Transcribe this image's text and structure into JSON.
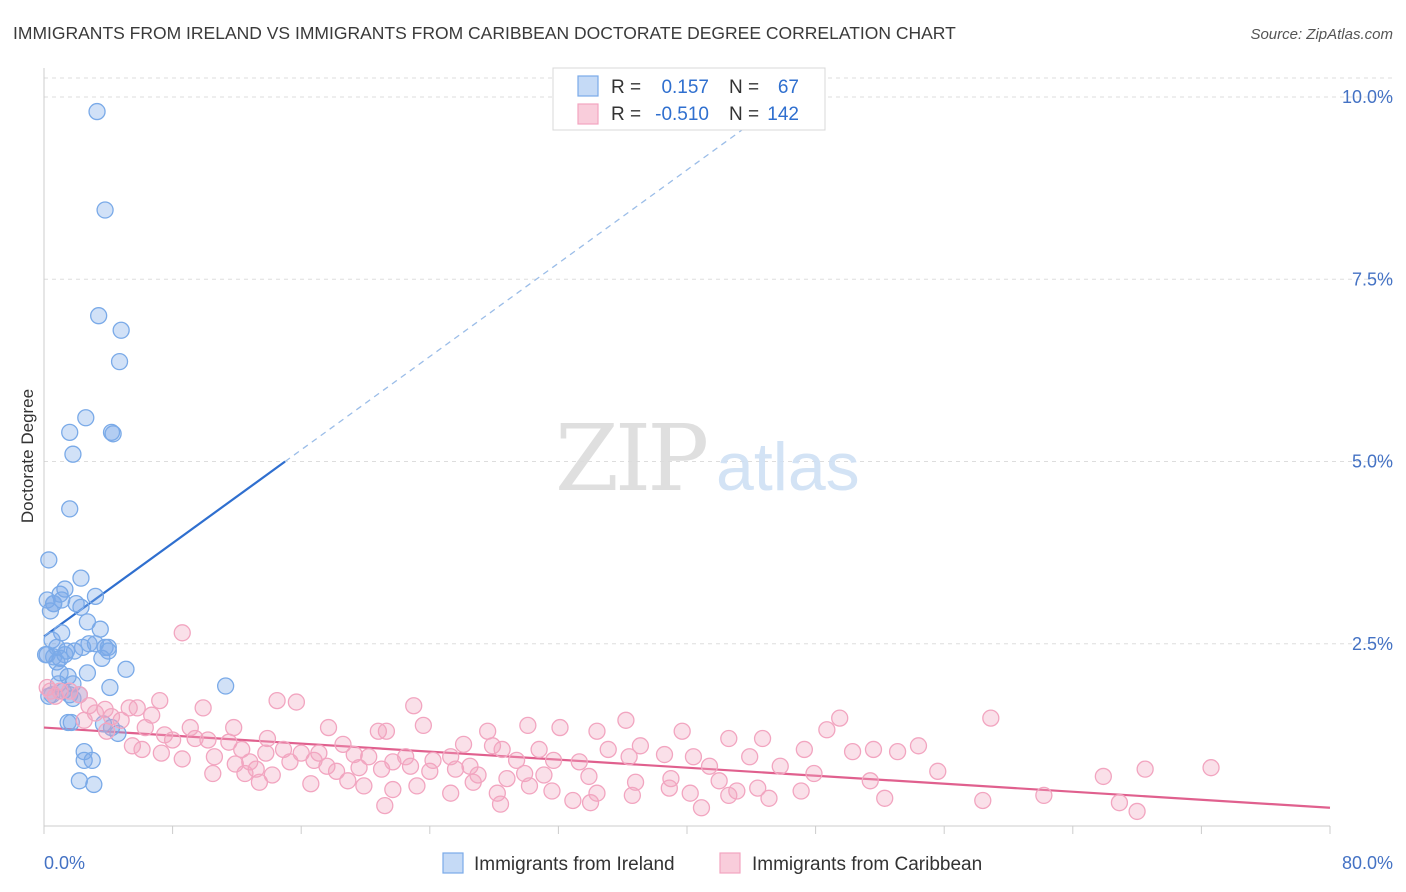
{
  "chart_data": {
    "type": "scatter",
    "title": "IMMIGRANTS FROM IRELAND VS IMMIGRANTS FROM CARIBBEAN DOCTORATE DEGREE CORRELATION CHART",
    "source": "Source: ZipAtlas.com",
    "ylabel": "Doctorate Degree",
    "xlabel": "",
    "xlim": [
      0,
      80
    ],
    "ylim": [
      0,
      10.5
    ],
    "x_tick_labels": [
      "0.0%",
      "80.0%"
    ],
    "y_ticks": [
      {
        "value": 2.5,
        "label": "2.5%"
      },
      {
        "value": 5.0,
        "label": "5.0%"
      },
      {
        "value": 7.5,
        "label": "7.5%"
      },
      {
        "value": 10.0,
        "label": "10.0%"
      }
    ],
    "grid": true,
    "watermark": "ZIPatlas",
    "stats_legend": [
      {
        "r_label": "R =",
        "r_value": "0.157",
        "n_label": "N =",
        "n_value": "67"
      },
      {
        "r_label": "R =",
        "r_value": "-0.510",
        "n_label": "N =",
        "n_value": "142"
      }
    ],
    "series": [
      {
        "name": "Immigrants from Ireland",
        "color": "#7aaae8",
        "line_color": "#2f6fcf",
        "trend_solid": {
          "x": [
            0,
            15
          ],
          "y": [
            2.6,
            5.0
          ]
        },
        "trend_dashed": {
          "x": [
            15,
            45
          ],
          "y": [
            5.0,
            9.8
          ]
        },
        "points": [
          [
            3.3,
            9.8
          ],
          [
            3.8,
            8.45
          ],
          [
            3.4,
            7.0
          ],
          [
            4.8,
            6.8
          ],
          [
            4.7,
            6.37
          ],
          [
            2.6,
            5.6
          ],
          [
            4.2,
            5.4
          ],
          [
            4.3,
            5.38
          ],
          [
            1.6,
            5.4
          ],
          [
            1.8,
            5.1
          ],
          [
            1.6,
            4.35
          ],
          [
            0.3,
            3.65
          ],
          [
            2.3,
            3.4
          ],
          [
            1.3,
            3.25
          ],
          [
            3.2,
            3.15
          ],
          [
            0.6,
            3.05
          ],
          [
            1.0,
            3.18
          ],
          [
            2.0,
            3.05
          ],
          [
            2.3,
            3.0
          ],
          [
            1.1,
            3.1
          ],
          [
            0.2,
            3.1
          ],
          [
            0.4,
            2.95
          ],
          [
            0.6,
            3.05
          ],
          [
            2.7,
            2.8
          ],
          [
            3.5,
            2.7
          ],
          [
            1.1,
            2.65
          ],
          [
            0.5,
            2.55
          ],
          [
            0.8,
            2.45
          ],
          [
            3.8,
            2.45
          ],
          [
            4.0,
            2.45
          ],
          [
            2.8,
            2.5
          ],
          [
            3.2,
            2.5
          ],
          [
            2.4,
            2.45
          ],
          [
            1.9,
            2.4
          ],
          [
            1.4,
            2.4
          ],
          [
            0.2,
            2.35
          ],
          [
            0.1,
            2.35
          ],
          [
            1.3,
            2.35
          ],
          [
            0.6,
            2.32
          ],
          [
            1.0,
            2.3
          ],
          [
            3.6,
            2.3
          ],
          [
            4.0,
            2.4
          ],
          [
            0.8,
            2.25
          ],
          [
            5.1,
            2.15
          ],
          [
            2.7,
            2.1
          ],
          [
            1.5,
            2.05
          ],
          [
            1.0,
            2.1
          ],
          [
            1.8,
            1.95
          ],
          [
            4.1,
            1.9
          ],
          [
            11.3,
            1.92
          ],
          [
            1.2,
            1.85
          ],
          [
            1.6,
            1.8
          ],
          [
            2.2,
            1.8
          ],
          [
            0.5,
            1.8
          ],
          [
            0.3,
            1.78
          ],
          [
            1.8,
            1.75
          ],
          [
            1.5,
            1.42
          ],
          [
            1.7,
            1.42
          ],
          [
            3.7,
            1.4
          ],
          [
            4.6,
            1.27
          ],
          [
            2.5,
            1.02
          ],
          [
            2.5,
            0.9
          ],
          [
            3.0,
            0.9
          ],
          [
            2.2,
            0.62
          ],
          [
            3.1,
            0.57
          ],
          [
            0.9,
            1.95
          ],
          [
            4.2,
            1.35
          ]
        ]
      },
      {
        "name": "Immigrants from Caribbean",
        "color": "#f2a5c0",
        "line_color": "#e0608e",
        "trend_solid": {
          "x": [
            0,
            80
          ],
          "y": [
            1.35,
            0.25
          ]
        },
        "points": [
          [
            8.6,
            2.65
          ],
          [
            0.2,
            1.9
          ],
          [
            0.4,
            1.85
          ],
          [
            1.0,
            1.85
          ],
          [
            1.6,
            1.85
          ],
          [
            2.2,
            1.8
          ],
          [
            0.7,
            1.78
          ],
          [
            2.8,
            1.65
          ],
          [
            3.8,
            1.6
          ],
          [
            5.3,
            1.62
          ],
          [
            5.8,
            1.62
          ],
          [
            7.2,
            1.72
          ],
          [
            9.9,
            1.62
          ],
          [
            14.5,
            1.72
          ],
          [
            15.7,
            1.7
          ],
          [
            23.0,
            1.65
          ],
          [
            3.2,
            1.55
          ],
          [
            4.2,
            1.5
          ],
          [
            6.7,
            1.52
          ],
          [
            2.5,
            1.45
          ],
          [
            4.8,
            1.45
          ],
          [
            6.3,
            1.35
          ],
          [
            9.1,
            1.35
          ],
          [
            11.8,
            1.35
          ],
          [
            13.9,
            1.2
          ],
          [
            17.7,
            1.35
          ],
          [
            20.8,
            1.3
          ],
          [
            21.3,
            1.3
          ],
          [
            23.6,
            1.38
          ],
          [
            27.6,
            1.3
          ],
          [
            30.1,
            1.38
          ],
          [
            32.1,
            1.35
          ],
          [
            34.4,
            1.3
          ],
          [
            36.2,
            1.45
          ],
          [
            39.7,
            1.3
          ],
          [
            42.6,
            1.2
          ],
          [
            44.7,
            1.2
          ],
          [
            48.7,
            1.32
          ],
          [
            49.5,
            1.48
          ],
          [
            51.6,
            1.05
          ],
          [
            54.4,
            1.1
          ],
          [
            58.9,
            1.48
          ],
          [
            3.9,
            1.3
          ],
          [
            5.5,
            1.1
          ],
          [
            6.1,
            1.05
          ],
          [
            7.5,
            1.25
          ],
          [
            8.0,
            1.18
          ],
          [
            9.4,
            1.2
          ],
          [
            10.2,
            1.18
          ],
          [
            11.5,
            1.15
          ],
          [
            12.3,
            1.05
          ],
          [
            13.8,
            1.0
          ],
          [
            14.9,
            1.05
          ],
          [
            16.0,
            1.0
          ],
          [
            17.1,
            1.0
          ],
          [
            18.6,
            1.12
          ],
          [
            19.3,
            0.98
          ],
          [
            20.2,
            0.95
          ],
          [
            21.7,
            0.88
          ],
          [
            22.5,
            0.95
          ],
          [
            24.2,
            0.9
          ],
          [
            25.3,
            0.95
          ],
          [
            26.1,
            1.12
          ],
          [
            27.9,
            1.1
          ],
          [
            28.5,
            1.05
          ],
          [
            29.4,
            0.9
          ],
          [
            30.8,
            1.05
          ],
          [
            31.7,
            0.9
          ],
          [
            33.3,
            0.88
          ],
          [
            35.1,
            1.05
          ],
          [
            36.4,
            0.95
          ],
          [
            37.1,
            1.1
          ],
          [
            38.6,
            0.98
          ],
          [
            40.4,
            0.95
          ],
          [
            41.4,
            0.82
          ],
          [
            43.9,
            0.95
          ],
          [
            45.8,
            0.82
          ],
          [
            47.3,
            1.05
          ],
          [
            50.3,
            1.02
          ],
          [
            53.1,
            1.02
          ],
          [
            7.3,
            1.0
          ],
          [
            8.6,
            0.92
          ],
          [
            10.6,
            0.95
          ],
          [
            11.9,
            0.85
          ],
          [
            12.8,
            0.88
          ],
          [
            13.2,
            0.78
          ],
          [
            15.3,
            0.88
          ],
          [
            16.8,
            0.9
          ],
          [
            17.6,
            0.82
          ],
          [
            18.2,
            0.75
          ],
          [
            19.6,
            0.8
          ],
          [
            21.0,
            0.78
          ],
          [
            22.8,
            0.82
          ],
          [
            24.0,
            0.75
          ],
          [
            25.6,
            0.78
          ],
          [
            26.5,
            0.82
          ],
          [
            27.0,
            0.7
          ],
          [
            28.8,
            0.65
          ],
          [
            29.9,
            0.72
          ],
          [
            31.1,
            0.7
          ],
          [
            33.9,
            0.68
          ],
          [
            36.8,
            0.6
          ],
          [
            39.0,
            0.65
          ],
          [
            42.0,
            0.62
          ],
          [
            43.1,
            0.48
          ],
          [
            44.4,
            0.52
          ],
          [
            47.9,
            0.72
          ],
          [
            51.4,
            0.62
          ],
          [
            55.6,
            0.75
          ],
          [
            65.9,
            0.68
          ],
          [
            68.5,
            0.78
          ],
          [
            72.6,
            0.8
          ],
          [
            10.5,
            0.72
          ],
          [
            12.5,
            0.72
          ],
          [
            13.4,
            0.6
          ],
          [
            14.2,
            0.7
          ],
          [
            16.6,
            0.58
          ],
          [
            18.9,
            0.62
          ],
          [
            19.9,
            0.55
          ],
          [
            21.7,
            0.5
          ],
          [
            23.2,
            0.55
          ],
          [
            25.3,
            0.45
          ],
          [
            26.7,
            0.6
          ],
          [
            28.2,
            0.45
          ],
          [
            30.2,
            0.55
          ],
          [
            31.6,
            0.48
          ],
          [
            32.9,
            0.35
          ],
          [
            34.4,
            0.45
          ],
          [
            36.6,
            0.42
          ],
          [
            38.9,
            0.52
          ],
          [
            40.2,
            0.45
          ],
          [
            42.6,
            0.42
          ],
          [
            45.1,
            0.38
          ],
          [
            47.1,
            0.48
          ],
          [
            52.3,
            0.38
          ],
          [
            58.4,
            0.35
          ],
          [
            62.2,
            0.42
          ],
          [
            66.9,
            0.32
          ],
          [
            21.2,
            0.28
          ],
          [
            28.4,
            0.3
          ],
          [
            34.0,
            0.32
          ],
          [
            40.9,
            0.25
          ],
          [
            68.0,
            0.2
          ]
        ]
      }
    ]
  }
}
